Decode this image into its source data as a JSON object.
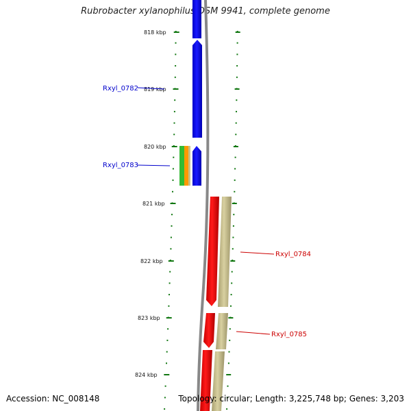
{
  "map": {
    "title": "Rubrobacter xylanophilus DSM 9941, complete genome",
    "accession": "Accession: NC_008148",
    "topology": "Topology: circular; Length: 3,225,748 bp; Genes: 3,203",
    "ticks": [
      "818 kbp",
      "819 kbp",
      "820 kbp",
      "821 kbp",
      "822 kbp",
      "823 kbp",
      "824 kbp"
    ],
    "colors": {
      "reverse_cds": "#0000ff",
      "forward_cds": "#ff0000",
      "backbone": "#888888",
      "ruler": "#117711",
      "feature_green": "#33bb33",
      "feature_orange": "#ff9900",
      "feature_olive": "#c8c08a"
    },
    "genes": [
      {
        "name": "Rxyl_0782",
        "color": "#0000cc"
      },
      {
        "name": "Rxyl_0783",
        "color": "#0000cc"
      },
      {
        "name": "Rxyl_0784",
        "color": "#cc0000"
      },
      {
        "name": "Rxyl_0785",
        "color": "#cc0000"
      }
    ]
  }
}
